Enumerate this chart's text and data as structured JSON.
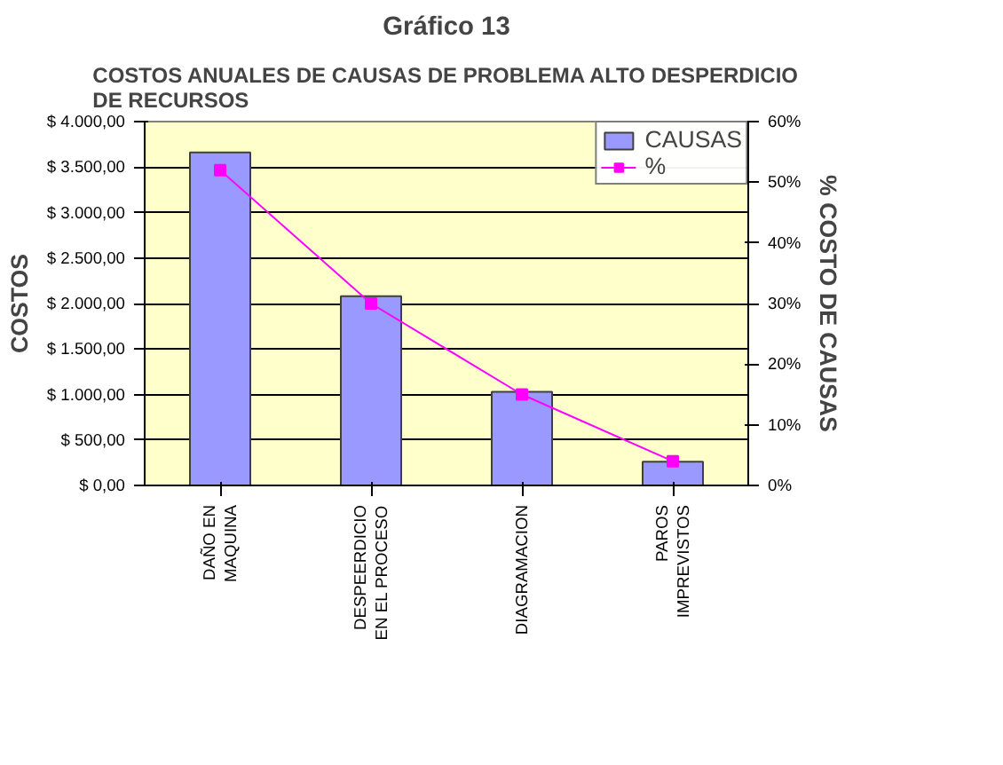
{
  "chart_data": {
    "type": "bar",
    "title": "Gráfico 13",
    "subtitle": "COSTOS ANUALES DE CAUSAS DE PROBLEMA ALTO DESPERDICIO\nDE RECURSOS",
    "ylabel": "COSTOS",
    "y2label": "% COSTO DE CAUSAS",
    "categories": [
      "DAÑO EN\nMAQUINA",
      "DESPEERDICIO\nEN EL PROCESO",
      "DIAGRAMACION",
      "PAROS\nIMPREVISTOS"
    ],
    "series": [
      {
        "name": "CAUSAS",
        "color": "#9999ff",
        "values": [
          3660,
          2080,
          1030,
          260
        ]
      },
      {
        "name": "%",
        "type": "line",
        "axis": "y2",
        "color": "#ff00ff",
        "values": [
          52,
          30,
          15,
          4
        ]
      }
    ],
    "ylim": [
      0,
      4000
    ],
    "yticks": [
      {
        "value": 0,
        "label": "$ 0,00"
      },
      {
        "value": 500,
        "label": "$ 500,00"
      },
      {
        "value": 1000,
        "label": "$ 1.000,00"
      },
      {
        "value": 1500,
        "label": "$ 1.500,00"
      },
      {
        "value": 2000,
        "label": "$ 2.000,00"
      },
      {
        "value": 2500,
        "label": "$ 2.500,00"
      },
      {
        "value": 3000,
        "label": "$ 3.000,00"
      },
      {
        "value": 3500,
        "label": "$ 3.500,00"
      },
      {
        "value": 4000,
        "label": "$ 4.000,00"
      }
    ],
    "y2lim": [
      0,
      60
    ],
    "y2ticks": [
      {
        "value": 0,
        "label": "0%"
      },
      {
        "value": 10,
        "label": "10%"
      },
      {
        "value": 20,
        "label": "20%"
      },
      {
        "value": 30,
        "label": "30%"
      },
      {
        "value": 40,
        "label": "40%"
      },
      {
        "value": 50,
        "label": "50%"
      },
      {
        "value": 60,
        "label": "60%"
      }
    ],
    "grid": "y",
    "legend": "top right",
    "marker": "square",
    "line_style": "solid"
  }
}
